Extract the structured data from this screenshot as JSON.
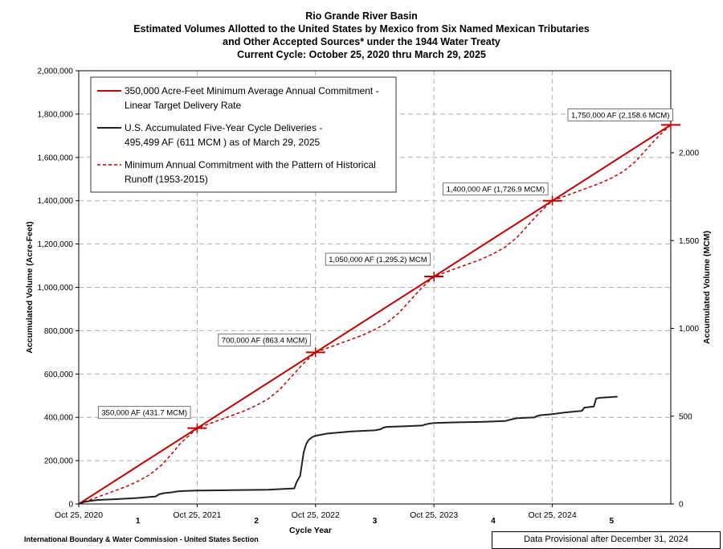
{
  "title": {
    "line1": "Rio Grande River Basin",
    "line2": "Estimated Volumes Allotted to the United States by Mexico from Six Named Mexican Tributaries",
    "line3": "and Other Accepted Sources* under the 1944 Water Treaty",
    "line4": "Current Cycle: October 25, 2020 thru March 29, 2025"
  },
  "footer": {
    "organization": "International Boundary & Water Commission - United States Section",
    "provisional": "Data Provisional after December 31, 2024"
  },
  "colors": {
    "red": "#c00000",
    "black": "#222222",
    "grid": "#b0b0b0"
  },
  "chart_data": {
    "type": "line",
    "xlabel": "Cycle Year",
    "ylabel": "Accumulated Volume (Acre-Feet)",
    "y2label": "Accumulated Volume (MCM)",
    "xlim": [
      0,
      5
    ],
    "ylim": [
      0,
      2000000
    ],
    "y2lim": [
      0,
      2466.96
    ],
    "x_ticks": [
      {
        "x": 0,
        "label": "Oct 25, 2020"
      },
      {
        "x": 1,
        "label": "Oct 25, 2021"
      },
      {
        "x": 2,
        "label": "Oct 25, 2022"
      },
      {
        "x": 3,
        "label": "Oct 25, 2023"
      },
      {
        "x": 4,
        "label": "Oct 25, 2024"
      }
    ],
    "cycle_year_labels": [
      {
        "x": 0.5,
        "label": "1"
      },
      {
        "x": 1.5,
        "label": "2"
      },
      {
        "x": 2.5,
        "label": "3"
      },
      {
        "x": 3.5,
        "label": "4"
      },
      {
        "x": 4.5,
        "label": "5"
      }
    ],
    "y_ticks": [
      {
        "v": 0,
        "label": "0"
      },
      {
        "v": 200000,
        "label": "200,000"
      },
      {
        "v": 400000,
        "label": "400,000"
      },
      {
        "v": 600000,
        "label": "600,000"
      },
      {
        "v": 800000,
        "label": "800,000"
      },
      {
        "v": 1000000,
        "label": "1,000,000"
      },
      {
        "v": 1200000,
        "label": "1,200,000"
      },
      {
        "v": 1400000,
        "label": "1,400,000"
      },
      {
        "v": 1600000,
        "label": "1,600,000"
      },
      {
        "v": 1800000,
        "label": "1,800,000"
      },
      {
        "v": 2000000,
        "label": "2,000,000"
      }
    ],
    "y2_ticks": [
      {
        "v": 0,
        "label": "0"
      },
      {
        "v": 500,
        "label": "500"
      },
      {
        "v": 1000,
        "label": "1,000"
      },
      {
        "v": 1500,
        "label": "1,500"
      },
      {
        "v": 2000,
        "label": "2,000"
      }
    ],
    "legend": [
      {
        "label1": "350,000 Acre-Feet Minimum Average Annual Commitment -",
        "label2": "Linear Target Delivery Rate",
        "style": "solid-red"
      },
      {
        "label1": "U.S. Accumulated Five-Year Cycle Deliveries -",
        "label2": "495,499 AF (611 MCM ) as of March 29, 2025",
        "style": "solid-black"
      },
      {
        "label1": "Minimum Annual Commitment with the Pattern of Historical",
        "label2": "Runoff (1953-2015)",
        "style": "dashed-red"
      }
    ],
    "series": [
      {
        "name": "350,000 Acre-Feet Minimum Average Annual Commitment - Linear Target Delivery Rate",
        "style": "solid-red",
        "x": [
          0,
          5
        ],
        "y": [
          0,
          1750000
        ]
      },
      {
        "name": "U.S. Accumulated Five-Year Cycle Deliveries",
        "style": "solid-black",
        "x": [
          0,
          0.05,
          0.15,
          0.3,
          0.5,
          0.65,
          0.68,
          0.72,
          0.8,
          0.83,
          0.9,
          1.0,
          1.3,
          1.6,
          1.75,
          1.82,
          1.84,
          1.87,
          1.9,
          1.92,
          1.94,
          1.97,
          2.0,
          2.1,
          2.3,
          2.5,
          2.55,
          2.57,
          2.6,
          2.8,
          2.9,
          2.92,
          2.95,
          3.0,
          3.2,
          3.4,
          3.6,
          3.65,
          3.7,
          3.85,
          3.87,
          3.9,
          4.0,
          4.05,
          4.1,
          4.25,
          4.27,
          4.35,
          4.37,
          4.4,
          4.55
        ],
        "y": [
          0,
          10000,
          18000,
          22000,
          28000,
          35000,
          45000,
          50000,
          55000,
          58000,
          60000,
          62000,
          64000,
          66000,
          70000,
          72000,
          100000,
          130000,
          240000,
          275000,
          295000,
          308000,
          315000,
          325000,
          335000,
          340000,
          345000,
          352000,
          356000,
          360000,
          362000,
          366000,
          370000,
          374000,
          377000,
          379000,
          383000,
          390000,
          396000,
          400000,
          406000,
          410000,
          415000,
          418000,
          422000,
          430000,
          445000,
          450000,
          487000,
          490000,
          495499
        ]
      },
      {
        "name": "Minimum Annual Commitment with the Pattern of Historical Runoff (1953-2015)",
        "style": "dashed-red",
        "x": [
          0,
          0.2,
          0.4,
          0.5,
          0.6,
          0.7,
          0.8,
          0.85,
          0.9,
          0.95,
          1.0,
          1.2,
          1.4,
          1.5,
          1.6,
          1.7,
          1.75,
          1.8,
          1.85,
          1.9,
          1.95,
          2.0,
          2.2,
          2.4,
          2.5,
          2.6,
          2.7,
          2.75,
          2.8,
          2.85,
          2.9,
          2.95,
          3.0,
          3.2,
          3.4,
          3.5,
          3.6,
          3.7,
          3.75,
          3.8,
          3.85,
          3.9,
          3.95,
          4.0,
          4.2,
          4.4,
          4.5,
          4.6,
          4.7,
          4.75,
          4.8,
          4.85,
          4.9,
          4.95,
          5.0
        ],
        "y": [
          0,
          40000,
          80000,
          105000,
          135000,
          180000,
          240000,
          275000,
          300000,
          325000,
          350000,
          390000,
          430000,
          455000,
          485000,
          530000,
          560000,
          590000,
          620000,
          650000,
          675000,
          700000,
          740000,
          780000,
          805000,
          835000,
          880000,
          910000,
          940000,
          970000,
          1000000,
          1025000,
          1050000,
          1090000,
          1130000,
          1155000,
          1185000,
          1230000,
          1260000,
          1290000,
          1320000,
          1350000,
          1375000,
          1400000,
          1440000,
          1480000,
          1505000,
          1535000,
          1580000,
          1610000,
          1640000,
          1670000,
          1700000,
          1725000,
          1750000
        ]
      }
    ],
    "annotations": [
      {
        "x": 1,
        "y": 350000,
        "label": "350,000 AF (431.7 MCM)"
      },
      {
        "x": 2,
        "y": 700000,
        "label": "700,000 AF (863.4 MCM)"
      },
      {
        "x": 3,
        "y": 1050000,
        "label": "1,050,000 AF (1,295.2) MCM"
      },
      {
        "x": 4,
        "y": 1400000,
        "label": "1,400,000  AF (1,726.9 MCM)"
      },
      {
        "x": 5,
        "y": 1750000,
        "label": "1,750,000 AF (2,158.6 MCM)"
      }
    ]
  }
}
